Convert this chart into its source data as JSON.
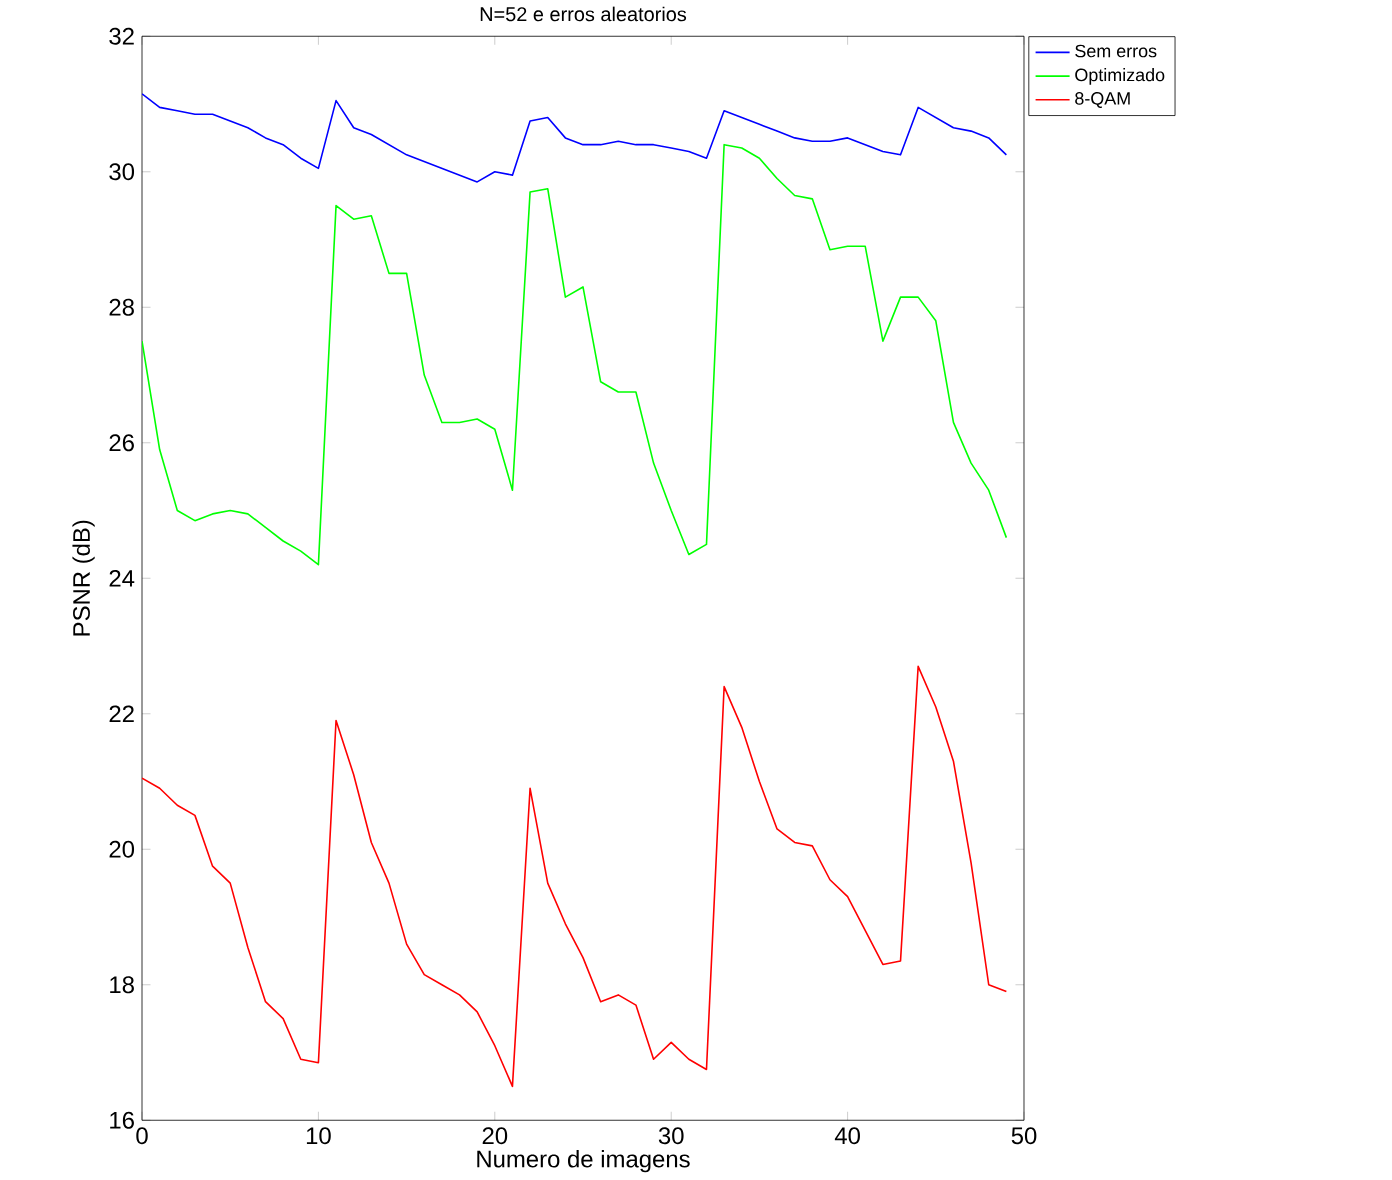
{
  "chart_data": {
    "type": "line",
    "title": "N=52 e erros aleatorios",
    "xlabel": "Numero de imagens",
    "ylabel": "PSNR (dB)",
    "x": [
      0,
      1,
      2,
      3,
      4,
      5,
      6,
      7,
      8,
      9,
      10,
      11,
      12,
      13,
      14,
      15,
      16,
      17,
      18,
      19,
      20,
      21,
      22,
      23,
      24,
      25,
      26,
      27,
      28,
      29,
      30,
      31,
      32,
      33,
      34,
      35,
      36,
      37,
      38,
      39,
      40,
      41,
      42,
      43,
      44,
      45,
      46,
      47,
      48,
      49
    ],
    "series": [
      {
        "name": "Sem erros",
        "color": "#0000ff",
        "values": [
          31.15,
          30.95,
          30.9,
          30.85,
          30.85,
          30.75,
          30.65,
          30.5,
          30.4,
          30.2,
          30.05,
          31.05,
          30.65,
          30.55,
          30.4,
          30.25,
          30.15,
          30.05,
          29.95,
          29.85,
          30.0,
          29.95,
          30.75,
          30.8,
          30.5,
          30.4,
          30.4,
          30.45,
          30.4,
          30.4,
          30.35,
          30.3,
          30.2,
          30.9,
          30.8,
          30.7,
          30.6,
          30.5,
          30.45,
          30.45,
          30.5,
          30.4,
          30.3,
          30.25,
          30.95,
          30.8,
          30.65,
          30.6,
          30.5,
          30.25
        ]
      },
      {
        "name": "Optimizado",
        "color": "#00ff00",
        "values": [
          27.5,
          25.9,
          25.0,
          24.85,
          24.95,
          25.0,
          24.95,
          24.75,
          24.55,
          24.4,
          24.2,
          29.5,
          29.3,
          29.35,
          28.5,
          28.5,
          27.0,
          26.3,
          26.3,
          26.35,
          26.2,
          25.3,
          29.7,
          29.75,
          28.15,
          28.3,
          26.9,
          26.75,
          26.75,
          25.7,
          25.0,
          24.35,
          24.5,
          30.4,
          30.35,
          30.2,
          29.9,
          29.65,
          29.6,
          28.85,
          28.9,
          28.9,
          27.5,
          28.15,
          28.15,
          27.8,
          26.3,
          25.7,
          25.3,
          24.6
        ]
      },
      {
        "name": "8-QAM",
        "color": "#ff0000",
        "values": [
          21.05,
          20.9,
          20.65,
          20.5,
          19.75,
          19.5,
          18.55,
          17.75,
          17.5,
          16.9,
          16.85,
          21.9,
          21.1,
          20.1,
          19.5,
          18.6,
          18.15,
          18.0,
          17.85,
          17.6,
          17.1,
          16.5,
          20.9,
          19.5,
          18.9,
          18.4,
          17.75,
          17.85,
          17.7,
          16.9,
          17.15,
          16.9,
          16.75,
          22.4,
          21.8,
          21.0,
          20.3,
          20.1,
          20.05,
          19.55,
          19.3,
          18.8,
          18.3,
          18.35,
          22.7,
          22.1,
          21.3,
          19.8,
          18.0,
          17.9
        ]
      }
    ],
    "xlim": [
      0,
      50
    ],
    "ylim": [
      16,
      32
    ],
    "xticks": [
      0,
      10,
      20,
      30,
      40,
      50
    ],
    "yticks": [
      16,
      18,
      20,
      22,
      24,
      26,
      28,
      30,
      32
    ],
    "grid": false,
    "legend": "top right",
    "marker": "none",
    "line_style": "solid"
  }
}
